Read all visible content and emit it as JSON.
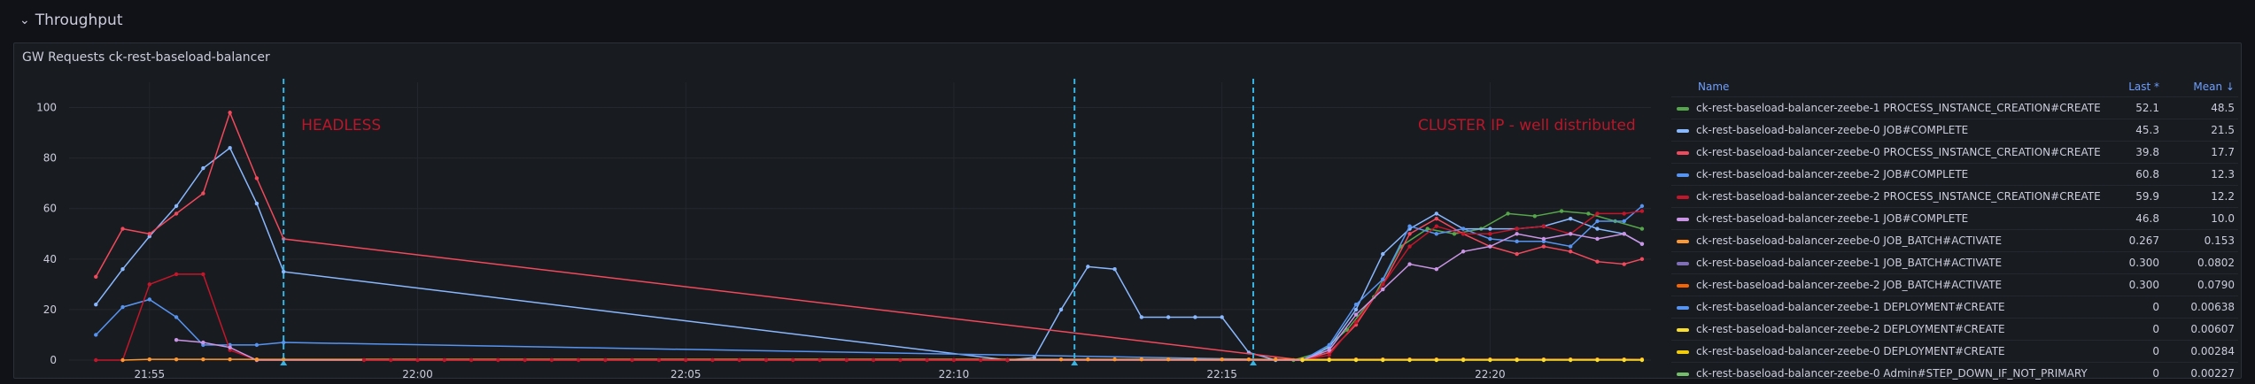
{
  "row": {
    "title": "Throughput"
  },
  "panel": {
    "title": "GW Requests ck-rest-baseload-balancer"
  },
  "legend": {
    "headers": {
      "name": "Name",
      "last": "Last *",
      "mean": "Mean ↓"
    },
    "rows": [
      {
        "name": "ck-rest-baseload-balancer-zeebe-1 PROCESS_INSTANCE_CREATION#CREATE",
        "last": "52.1",
        "mean": "48.5",
        "color": "#56a64b"
      },
      {
        "name": "ck-rest-baseload-balancer-zeebe-0 JOB#COMPLETE",
        "last": "45.3",
        "mean": "21.5",
        "color": "#8ab8ff"
      },
      {
        "name": "ck-rest-baseload-balancer-zeebe-0 PROCESS_INSTANCE_CREATION#CREATE",
        "last": "39.8",
        "mean": "17.7",
        "color": "#f2495c"
      },
      {
        "name": "ck-rest-baseload-balancer-zeebe-2 JOB#COMPLETE",
        "last": "60.8",
        "mean": "12.3",
        "color": "#5794f2"
      },
      {
        "name": "ck-rest-baseload-balancer-zeebe-2 PROCESS_INSTANCE_CREATION#CREATE",
        "last": "59.9",
        "mean": "12.2",
        "color": "#c4162a"
      },
      {
        "name": "ck-rest-baseload-balancer-zeebe-1 JOB#COMPLETE",
        "last": "46.8",
        "mean": "10.0",
        "color": "#ca95e5"
      },
      {
        "name": "ck-rest-baseload-balancer-zeebe-0 JOB_BATCH#ACTIVATE",
        "last": "0.267",
        "mean": "0.153",
        "color": "#ff9830"
      },
      {
        "name": "ck-rest-baseload-balancer-zeebe-1 JOB_BATCH#ACTIVATE",
        "last": "0.300",
        "mean": "0.0802",
        "color": "#806eb7"
      },
      {
        "name": "ck-rest-baseload-balancer-zeebe-2 JOB_BATCH#ACTIVATE",
        "last": "0.300",
        "mean": "0.0790",
        "color": "#fa6400"
      },
      {
        "name": "ck-rest-baseload-balancer-zeebe-1 DEPLOYMENT#CREATE",
        "last": "0",
        "mean": "0.00638",
        "color": "#5794f2"
      },
      {
        "name": "ck-rest-baseload-balancer-zeebe-2 DEPLOYMENT#CREATE",
        "last": "0",
        "mean": "0.00607",
        "color": "#fade2a"
      },
      {
        "name": "ck-rest-baseload-balancer-zeebe-0 DEPLOYMENT#CREATE",
        "last": "0",
        "mean": "0.00284",
        "color": "#f2cc0c"
      },
      {
        "name": "ck-rest-baseload-balancer-zeebe-0 Admin#STEP_DOWN_IF_NOT_PRIMARY",
        "last": "0",
        "mean": "0.00227",
        "color": "#73bf69"
      }
    ]
  },
  "chart_data": {
    "type": "line",
    "x_ticks": [
      "21:55",
      "22:00",
      "22:05",
      "22:10",
      "22:15",
      "22:20"
    ],
    "y_ticks": [
      0,
      20,
      40,
      60,
      80,
      100
    ],
    "ylim": [
      0,
      110
    ],
    "xlim": [
      "21:53:30",
      "22:23:00"
    ],
    "grid": true,
    "legend_placement": "right",
    "annotations": [
      {
        "time": "21:57:30",
        "text": "HEADLESS",
        "color": "#c4162a"
      },
      {
        "time": "22:12:15",
        "text": "",
        "color": "#33b5e5"
      },
      {
        "time": "22:15:35",
        "text": "CLUSTER IP - well distributed",
        "color": "#c4162a"
      }
    ],
    "series": [
      {
        "color": "#56a64b",
        "points": [
          [
            "22:16:20",
            0
          ],
          [
            "22:16:50",
            3
          ],
          [
            "22:17:20",
            12
          ],
          [
            "22:17:50",
            25
          ],
          [
            "22:18:20",
            45
          ],
          [
            "22:18:50",
            52
          ],
          [
            "22:19:20",
            50
          ],
          [
            "22:19:50",
            52
          ],
          [
            "22:20:20",
            58
          ],
          [
            "22:20:50",
            57
          ],
          [
            "22:21:20",
            59
          ],
          [
            "22:21:50",
            58
          ],
          [
            "22:22:20",
            55
          ],
          [
            "22:22:50",
            52
          ]
        ]
      },
      {
        "color": "#8ab8ff",
        "points": [
          [
            "21:54:00",
            22
          ],
          [
            "21:54:30",
            36
          ],
          [
            "21:55:00",
            49
          ],
          [
            "21:55:30",
            61
          ],
          [
            "21:56:00",
            76
          ],
          [
            "21:56:30",
            84
          ],
          [
            "21:57:00",
            62
          ],
          [
            "21:57:30",
            35
          ],
          [
            "22:11:00",
            0
          ],
          [
            "22:11:30",
            1
          ],
          [
            "22:12:00",
            20
          ],
          [
            "22:12:30",
            37
          ],
          [
            "22:13:00",
            36
          ],
          [
            "22:13:30",
            17
          ],
          [
            "22:14:00",
            17
          ],
          [
            "22:14:30",
            17
          ],
          [
            "22:15:00",
            17
          ],
          [
            "22:15:30",
            3
          ],
          [
            "22:16:00",
            0
          ],
          [
            "22:16:30",
            0
          ],
          [
            "22:17:00",
            5
          ],
          [
            "22:17:30",
            20
          ],
          [
            "22:18:00",
            42
          ],
          [
            "22:18:30",
            52
          ],
          [
            "22:19:00",
            58
          ],
          [
            "22:19:30",
            52
          ],
          [
            "22:20:00",
            52
          ],
          [
            "22:20:30",
            52
          ],
          [
            "22:21:00",
            53
          ],
          [
            "22:21:30",
            56
          ],
          [
            "22:22:00",
            52
          ],
          [
            "22:22:30",
            50
          ],
          [
            "22:22:50",
            46
          ]
        ]
      },
      {
        "color": "#f2495c",
        "points": [
          [
            "21:54:00",
            33
          ],
          [
            "21:54:30",
            52
          ],
          [
            "21:55:00",
            50
          ],
          [
            "21:55:30",
            58
          ],
          [
            "21:56:00",
            66
          ],
          [
            "21:56:30",
            98
          ],
          [
            "21:57:00",
            72
          ],
          [
            "21:57:30",
            48
          ],
          [
            "22:16:30",
            0
          ],
          [
            "22:17:00",
            3
          ],
          [
            "22:17:30",
            14
          ],
          [
            "22:18:00",
            30
          ],
          [
            "22:18:30",
            50
          ],
          [
            "22:19:00",
            56
          ],
          [
            "22:19:30",
            50
          ],
          [
            "22:20:00",
            45
          ],
          [
            "22:20:30",
            42
          ],
          [
            "22:21:00",
            45
          ],
          [
            "22:21:30",
            43
          ],
          [
            "22:22:00",
            39
          ],
          [
            "22:22:30",
            38
          ],
          [
            "22:22:50",
            40
          ]
        ]
      },
      {
        "color": "#5794f2",
        "points": [
          [
            "21:54:00",
            10
          ],
          [
            "21:54:30",
            21
          ],
          [
            "21:55:00",
            24
          ],
          [
            "21:55:30",
            17
          ],
          [
            "21:56:00",
            6
          ],
          [
            "21:56:30",
            6
          ],
          [
            "21:57:00",
            6
          ],
          [
            "21:57:30",
            7
          ],
          [
            "22:16:30",
            0
          ],
          [
            "22:17:00",
            6
          ],
          [
            "22:17:30",
            22
          ],
          [
            "22:18:00",
            32
          ],
          [
            "22:18:30",
            53
          ],
          [
            "22:19:00",
            50
          ],
          [
            "22:19:30",
            52
          ],
          [
            "22:20:00",
            48
          ],
          [
            "22:20:30",
            47
          ],
          [
            "22:21:00",
            47
          ],
          [
            "22:21:30",
            45
          ],
          [
            "22:22:00",
            55
          ],
          [
            "22:22:30",
            55
          ],
          [
            "22:22:50",
            61
          ]
        ]
      },
      {
        "color": "#c4162a",
        "points": [
          [
            "21:54:00",
            0
          ],
          [
            "21:54:30",
            0
          ],
          [
            "21:55:00",
            30
          ],
          [
            "21:55:30",
            34
          ],
          [
            "21:56:00",
            34
          ],
          [
            "21:56:30",
            4
          ],
          [
            "21:57:00",
            0
          ],
          [
            "21:57:30",
            0
          ],
          [
            "22:16:30",
            0
          ],
          [
            "22:17:00",
            2
          ],
          [
            "22:17:30",
            15
          ],
          [
            "22:18:00",
            30
          ],
          [
            "22:18:30",
            45
          ],
          [
            "22:19:00",
            53
          ],
          [
            "22:19:30",
            50
          ],
          [
            "22:20:00",
            50
          ],
          [
            "22:20:30",
            52
          ],
          [
            "22:21:00",
            53
          ],
          [
            "22:21:30",
            50
          ],
          [
            "22:22:00",
            58
          ],
          [
            "22:22:30",
            58
          ],
          [
            "22:22:50",
            59
          ]
        ]
      },
      {
        "color": "#ca95e5",
        "points": [
          [
            "21:55:30",
            8
          ],
          [
            "21:56:00",
            7
          ],
          [
            "21:56:30",
            5
          ],
          [
            "21:57:00",
            0
          ],
          [
            "22:16:30",
            0
          ],
          [
            "22:17:00",
            4
          ],
          [
            "22:17:30",
            18
          ],
          [
            "22:18:00",
            28
          ],
          [
            "22:18:30",
            38
          ],
          [
            "22:19:00",
            36
          ],
          [
            "22:19:30",
            43
          ],
          [
            "22:20:00",
            45
          ],
          [
            "22:20:30",
            50
          ],
          [
            "22:21:00",
            48
          ],
          [
            "22:21:30",
            50
          ],
          [
            "22:22:00",
            48
          ],
          [
            "22:22:30",
            50
          ],
          [
            "22:22:50",
            46
          ]
        ]
      },
      {
        "color": "#ff9830",
        "points": [
          [
            "21:54:30",
            0
          ],
          [
            "21:55:00",
            0.3
          ],
          [
            "21:55:30",
            0.3
          ],
          [
            "21:56:00",
            0.3
          ],
          [
            "21:56:30",
            0.3
          ],
          [
            "21:57:00",
            0.3
          ],
          [
            "21:57:30",
            0.3
          ],
          [
            "22:12:00",
            0.3
          ],
          [
            "22:12:30",
            0.3
          ],
          [
            "22:13:00",
            0.3
          ],
          [
            "22:13:30",
            0.3
          ],
          [
            "22:14:00",
            0.3
          ],
          [
            "22:14:30",
            0.3
          ],
          [
            "22:15:00",
            0.3
          ],
          [
            "22:15:30",
            0.3
          ],
          [
            "22:16:00",
            0.3
          ],
          [
            "22:16:30",
            0.3
          ],
          [
            "22:17:00",
            0.3
          ],
          [
            "22:17:30",
            0.3
          ],
          [
            "22:18:00",
            0.3
          ],
          [
            "22:18:30",
            0.3
          ],
          [
            "22:19:00",
            0.3
          ],
          [
            "22:19:30",
            0.3
          ],
          [
            "22:20:00",
            0.3
          ],
          [
            "22:20:30",
            0.3
          ],
          [
            "22:21:00",
            0.3
          ],
          [
            "22:21:30",
            0.3
          ],
          [
            "22:22:00",
            0.3
          ],
          [
            "22:22:30",
            0.3
          ],
          [
            "22:22:50",
            0.27
          ]
        ]
      },
      {
        "color": "#c4162a",
        "points": [
          [
            "21:59:00",
            0
          ],
          [
            "21:59:30",
            0
          ],
          [
            "22:00:00",
            0
          ],
          [
            "22:00:30",
            0
          ],
          [
            "22:01:00",
            0
          ],
          [
            "22:01:30",
            0
          ],
          [
            "22:02:00",
            0
          ],
          [
            "22:02:30",
            0
          ],
          [
            "22:03:00",
            0
          ],
          [
            "22:03:30",
            0
          ],
          [
            "22:04:00",
            0
          ],
          [
            "22:04:30",
            0
          ],
          [
            "22:05:00",
            0
          ],
          [
            "22:05:30",
            0
          ],
          [
            "22:06:00",
            0
          ],
          [
            "22:06:30",
            0
          ],
          [
            "22:07:00",
            0
          ],
          [
            "22:07:30",
            0
          ],
          [
            "22:08:00",
            0
          ],
          [
            "22:08:30",
            0
          ],
          [
            "22:09:00",
            0
          ],
          [
            "22:09:30",
            0
          ],
          [
            "22:10:00",
            0
          ],
          [
            "22:10:30",
            0
          ],
          [
            "22:11:00",
            0
          ]
        ]
      },
      {
        "color": "#fade2a",
        "points": [
          [
            "22:16:30",
            0
          ],
          [
            "22:17:00",
            0
          ],
          [
            "22:17:30",
            0
          ],
          [
            "22:18:00",
            0
          ],
          [
            "22:18:30",
            0
          ],
          [
            "22:19:00",
            0
          ],
          [
            "22:19:30",
            0
          ],
          [
            "22:20:00",
            0
          ],
          [
            "22:20:30",
            0
          ],
          [
            "22:21:00",
            0
          ],
          [
            "22:21:30",
            0
          ],
          [
            "22:22:00",
            0
          ],
          [
            "22:22:30",
            0
          ],
          [
            "22:22:50",
            0
          ]
        ]
      }
    ]
  }
}
